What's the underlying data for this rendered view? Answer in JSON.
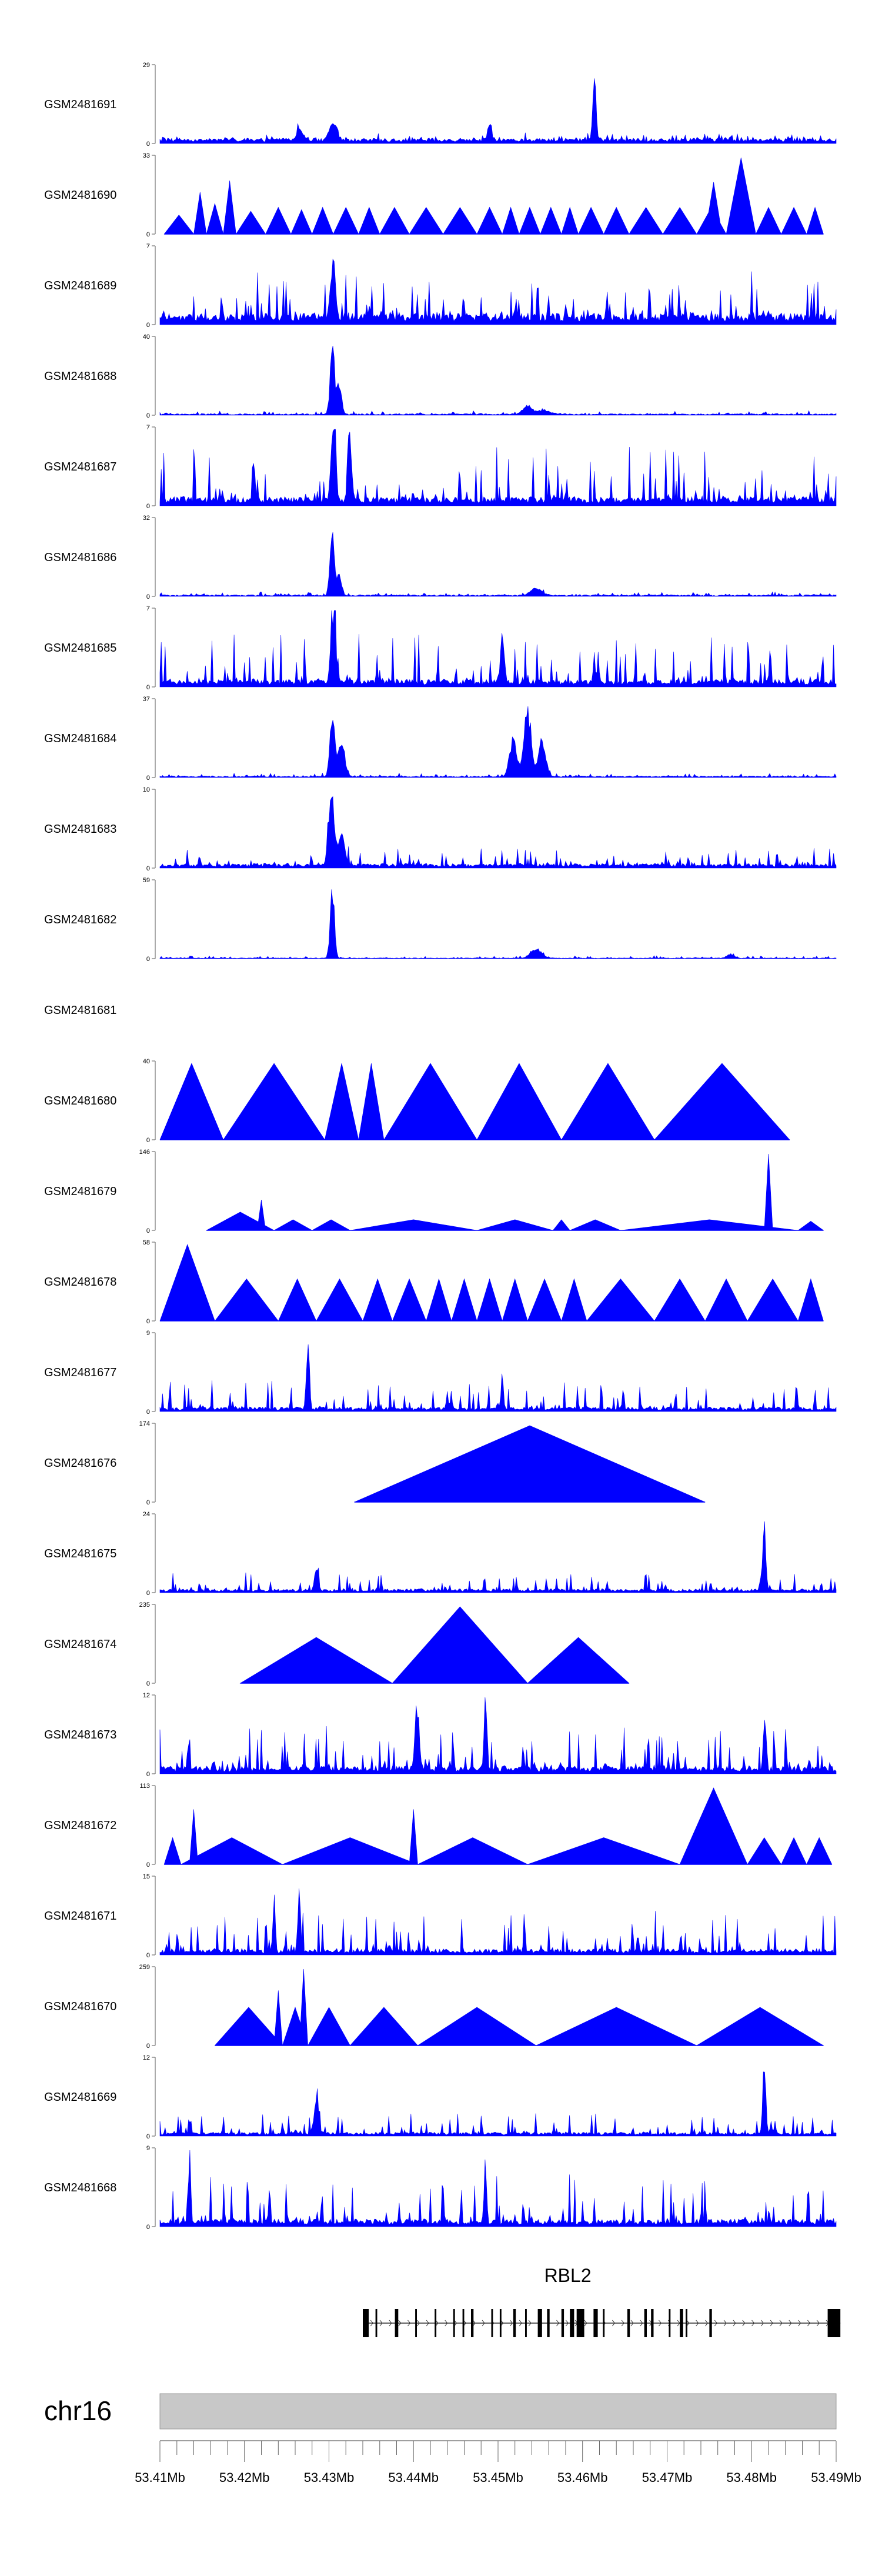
{
  "chart_data": {
    "type": "area",
    "title": "",
    "region": {
      "chrom": "chr16",
      "start_mb": 53.41,
      "end_mb": 53.49
    },
    "gene": {
      "name": "RBL2",
      "strand": "+",
      "start_mb": 53.434,
      "end_mb": 53.4905
    },
    "colors": {
      "signal": "#0000ff",
      "axis": "#555555",
      "ideogram": "#c8c8c8",
      "gene": "#000000"
    },
    "x_ticks": [
      "53.41Mb",
      "53.42Mb",
      "53.43Mb",
      "53.44Mb",
      "53.45Mb",
      "53.46Mb",
      "53.47Mb",
      "53.48Mb",
      "53.49Mb"
    ],
    "tracks": [
      {
        "name": "GSM2481691",
        "ymax": 29,
        "ymin_label": "0",
        "ymax_label": "29",
        "style": "spiky",
        "base": 0.07,
        "noise": 0.08,
        "span": [
          53.41,
          53.49
        ],
        "peaks": [
          [
            53.4614,
            1.0,
            0.00025
          ],
          [
            53.4305,
            0.28,
            0.0006
          ],
          [
            53.449,
            0.3,
            0.0003
          ],
          [
            53.4265,
            0.18,
            0.0005
          ]
        ]
      },
      {
        "name": "GSM2481690",
        "ymax": 33,
        "ymin_label": "0",
        "ymax_label": "33",
        "style": "triangles",
        "span": [
          53.4105,
          53.4885
        ],
        "tris": [
          [
            53.4105,
            53.414,
            0.25
          ],
          [
            53.414,
            53.4155,
            0.55
          ],
          [
            53.4155,
            53.4175,
            0.4
          ],
          [
            53.4175,
            53.419,
            0.7
          ],
          [
            53.419,
            53.4225,
            0.3
          ],
          [
            53.4225,
            53.4255,
            0.35
          ],
          [
            53.4255,
            53.428,
            0.32
          ],
          [
            53.428,
            53.4305,
            0.35
          ],
          [
            53.4305,
            53.4335,
            0.35
          ],
          [
            53.4335,
            53.436,
            0.35
          ],
          [
            53.436,
            53.4395,
            0.35
          ],
          [
            53.4395,
            53.4435,
            0.35
          ],
          [
            53.4435,
            53.4475,
            0.35
          ],
          [
            53.4475,
            53.4505,
            0.35
          ],
          [
            53.4505,
            53.4525,
            0.35
          ],
          [
            53.4525,
            53.455,
            0.35
          ],
          [
            53.455,
            53.4575,
            0.35
          ],
          [
            53.4575,
            53.4595,
            0.35
          ],
          [
            53.4595,
            53.4625,
            0.35
          ],
          [
            53.4625,
            53.4655,
            0.35
          ],
          [
            53.4655,
            53.4695,
            0.35
          ],
          [
            53.4695,
            53.4735,
            0.35
          ],
          [
            53.4735,
            53.477,
            0.35
          ],
          [
            53.4745,
            53.4765,
            0.68
          ],
          [
            53.477,
            53.4805,
            1.0
          ],
          [
            53.4805,
            53.4835,
            0.35
          ],
          [
            53.4835,
            53.4865,
            0.35
          ],
          [
            53.4865,
            53.4885,
            0.35
          ]
        ]
      },
      {
        "name": "GSM2481689",
        "ymax": 7,
        "ymin_label": "0",
        "ymax_label": "7",
        "style": "spiky",
        "base": 0.15,
        "noise": 0.55,
        "span": [
          53.41,
          53.49
        ],
        "peaks": [
          [
            53.4305,
            0.9,
            0.0004
          ]
        ]
      },
      {
        "name": "GSM2481688",
        "ymax": 40,
        "ymin_label": "0",
        "ymax_label": "40",
        "style": "spiky",
        "base": 0.02,
        "noise": 0.04,
        "span": [
          53.41,
          53.49
        ],
        "peaks": [
          [
            53.4304,
            1.0,
            0.00035
          ],
          [
            53.4312,
            0.45,
            0.0004
          ],
          [
            53.4535,
            0.12,
            0.0008
          ],
          [
            53.4555,
            0.06,
            0.001
          ]
        ]
      },
      {
        "name": "GSM2481687",
        "ymax": 7,
        "ymin_label": "0",
        "ymax_label": "7",
        "style": "spiky",
        "base": 0.12,
        "noise": 0.7,
        "span": [
          53.41,
          53.49
        ],
        "peaks": [
          [
            53.4305,
            1.0,
            0.0004
          ],
          [
            53.4325,
            0.9,
            0.0003
          ]
        ]
      },
      {
        "name": "GSM2481686",
        "ymax": 32,
        "ymin_label": "0",
        "ymax_label": "32",
        "style": "spiky",
        "base": 0.02,
        "noise": 0.04,
        "span": [
          53.41,
          53.49
        ],
        "peaks": [
          [
            53.4304,
            1.0,
            0.00035
          ],
          [
            53.4312,
            0.3,
            0.0004
          ],
          [
            53.4545,
            0.1,
            0.001
          ]
        ]
      },
      {
        "name": "GSM2481685",
        "ymax": 7,
        "ymin_label": "0",
        "ymax_label": "7",
        "style": "spiky",
        "base": 0.1,
        "noise": 0.6,
        "span": [
          53.41,
          53.49
        ],
        "peaks": [
          [
            53.4305,
            1.0,
            0.0004
          ],
          [
            53.4505,
            0.8,
            0.0003
          ]
        ]
      },
      {
        "name": "GSM2481684",
        "ymax": 37,
        "ymin_label": "0",
        "ymax_label": "37",
        "style": "spiky",
        "base": 0.02,
        "noise": 0.04,
        "span": [
          53.41,
          53.49
        ],
        "peaks": [
          [
            53.4304,
            0.95,
            0.0004
          ],
          [
            53.4315,
            0.55,
            0.0005
          ],
          [
            53.4518,
            0.55,
            0.0006
          ],
          [
            53.4535,
            0.95,
            0.0006
          ],
          [
            53.4552,
            0.55,
            0.0006
          ]
        ]
      },
      {
        "name": "GSM2481683",
        "ymax": 10,
        "ymin_label": "0",
        "ymax_label": "10",
        "style": "spiky",
        "base": 0.06,
        "noise": 0.22,
        "span": [
          53.41,
          53.49
        ],
        "peaks": [
          [
            53.4303,
            0.95,
            0.0005
          ],
          [
            53.4315,
            0.45,
            0.0005
          ]
        ]
      },
      {
        "name": "GSM2481682",
        "ymax": 59,
        "ymin_label": "0",
        "ymax_label": "59",
        "style": "spiky",
        "base": 0.01,
        "noise": 0.03,
        "span": [
          53.41,
          53.49
        ],
        "peaks": [
          [
            53.4304,
            1.0,
            0.00035
          ],
          [
            53.4545,
            0.14,
            0.0009
          ],
          [
            53.4775,
            0.06,
            0.0006
          ]
        ]
      },
      {
        "name": "GSM2481681",
        "ymax": 0,
        "style": "empty"
      },
      {
        "name": "GSM2481680",
        "ymax": 40,
        "ymin_label": "0",
        "ymax_label": "40",
        "style": "triangles",
        "span": [
          53.41,
          53.4845
        ],
        "tris": [
          [
            53.41,
            53.4175,
            1.0
          ],
          [
            53.4175,
            53.4295,
            1.0
          ],
          [
            53.4295,
            53.4335,
            1.0
          ],
          [
            53.4335,
            53.4365,
            1.0
          ],
          [
            53.4365,
            53.4475,
            1.0
          ],
          [
            53.4475,
            53.4575,
            1.0
          ],
          [
            53.4575,
            53.4685,
            1.0
          ],
          [
            53.4685,
            53.4845,
            1.0
          ]
        ]
      },
      {
        "name": "GSM2481679",
        "ymax": 146,
        "ymin_label": "0",
        "ymax_label": "146",
        "style": "triangles",
        "span": [
          53.4155,
          53.4885
        ],
        "tris": [
          [
            53.4155,
            53.4235,
            0.24
          ],
          [
            53.4215,
            53.4225,
            0.4
          ],
          [
            53.4235,
            53.428,
            0.14
          ],
          [
            53.428,
            53.4325,
            0.14
          ],
          [
            53.4325,
            53.4475,
            0.14
          ],
          [
            53.4475,
            53.4565,
            0.14
          ],
          [
            53.4565,
            53.4585,
            0.14
          ],
          [
            53.4585,
            53.4645,
            0.14
          ],
          [
            53.4645,
            53.4855,
            0.14
          ],
          [
            53.4815,
            53.4825,
            1.0
          ],
          [
            53.4855,
            53.4885,
            0.12
          ]
        ]
      },
      {
        "name": "GSM2481678",
        "ymax": 58,
        "ymin_label": "0",
        "ymax_label": "58",
        "style": "triangles",
        "span": [
          53.41,
          53.4885
        ],
        "tris": [
          [
            53.41,
            53.4165,
            1.0
          ],
          [
            53.4165,
            53.424,
            0.55
          ],
          [
            53.424,
            53.4285,
            0.55
          ],
          [
            53.4285,
            53.434,
            0.55
          ],
          [
            53.434,
            53.4375,
            0.55
          ],
          [
            53.4375,
            53.4415,
            0.55
          ],
          [
            53.4415,
            53.4445,
            0.55
          ],
          [
            53.4445,
            53.4475,
            0.55
          ],
          [
            53.4475,
            53.4505,
            0.55
          ],
          [
            53.4505,
            53.4535,
            0.55
          ],
          [
            53.4535,
            53.4575,
            0.55
          ],
          [
            53.4575,
            53.4605,
            0.55
          ],
          [
            53.4605,
            53.4685,
            0.55
          ],
          [
            53.4685,
            53.4745,
            0.55
          ],
          [
            53.4745,
            53.4795,
            0.55
          ],
          [
            53.4795,
            53.4855,
            0.55
          ],
          [
            53.4855,
            53.4885,
            0.55
          ]
        ]
      },
      {
        "name": "GSM2481677",
        "ymax": 9,
        "ymin_label": "0",
        "ymax_label": "9",
        "style": "spiky",
        "base": 0.06,
        "noise": 0.35,
        "span": [
          53.41,
          53.49
        ],
        "peaks": [
          [
            53.4275,
            1.0,
            0.00025
          ],
          [
            53.4505,
            0.5,
            0.0002
          ]
        ]
      },
      {
        "name": "GSM2481676",
        "ymax": 174,
        "ymin_label": "0",
        "ymax_label": "174",
        "style": "triangles",
        "span": [
          53.433,
          53.4745
        ],
        "tris": [
          [
            53.433,
            53.4745,
            1.0
          ]
        ]
      },
      {
        "name": "GSM2481675",
        "ymax": 24,
        "ymin_label": "0",
        "ymax_label": "24",
        "style": "spiky",
        "base": 0.05,
        "noise": 0.22,
        "span": [
          53.41,
          53.49
        ],
        "peaks": [
          [
            53.4815,
            1.0,
            0.00025
          ],
          [
            53.4285,
            0.35,
            0.0003
          ]
        ]
      },
      {
        "name": "GSM2481674",
        "ymax": 235,
        "ymin_label": "0",
        "ymax_label": "235",
        "style": "triangles",
        "span": [
          53.4195,
          53.4655
        ],
        "tris": [
          [
            53.4195,
            53.4375,
            0.6
          ],
          [
            53.4375,
            53.4535,
            1.0
          ],
          [
            53.4535,
            53.4655,
            0.6
          ]
        ]
      },
      {
        "name": "GSM2481673",
        "ymax": 12,
        "ymin_label": "0",
        "ymax_label": "12",
        "style": "spiky",
        "base": 0.1,
        "noise": 0.55,
        "span": [
          53.41,
          53.49
        ],
        "peaks": [
          [
            53.4405,
            0.8,
            0.0003
          ],
          [
            53.4485,
            1.0,
            0.0002
          ],
          [
            53.4815,
            0.7,
            0.0002
          ]
        ]
      },
      {
        "name": "GSM2481672",
        "ymax": 113,
        "ymin_label": "0",
        "ymax_label": "113",
        "style": "triangles",
        "span": [
          53.4105,
          53.4895
        ],
        "tris": [
          [
            53.4105,
            53.4125,
            0.35
          ],
          [
            53.4125,
            53.4245,
            0.35
          ],
          [
            53.4135,
            53.4145,
            0.72
          ],
          [
            53.4245,
            53.4405,
            0.35
          ],
          [
            53.4405,
            53.4535,
            0.35
          ],
          [
            53.4395,
            53.4405,
            0.72
          ],
          [
            53.4535,
            53.4715,
            0.35
          ],
          [
            53.4715,
            53.4795,
            1.0
          ],
          [
            53.4795,
            53.4835,
            0.35
          ],
          [
            53.4835,
            53.4865,
            0.35
          ],
          [
            53.4865,
            53.4895,
            0.35
          ]
        ]
      },
      {
        "name": "GSM2481671",
        "ymax": 15,
        "ymin_label": "0",
        "ymax_label": "15",
        "style": "spiky",
        "base": 0.08,
        "noise": 0.5,
        "span": [
          53.41,
          53.49
        ],
        "peaks": [
          [
            53.4265,
            1.0,
            0.0002
          ],
          [
            53.4235,
            0.75,
            0.0002
          ]
        ]
      },
      {
        "name": "GSM2481670",
        "ymax": 259,
        "ymin_label": "0",
        "ymax_label": "259",
        "style": "triangles",
        "span": [
          53.4165,
          53.4885
        ],
        "tris": [
          [
            53.4165,
            53.4245,
            0.5
          ],
          [
            53.4235,
            53.4245,
            0.72
          ],
          [
            53.4245,
            53.4275,
            0.5
          ],
          [
            53.4265,
            53.4275,
            1.0
          ],
          [
            53.4275,
            53.4325,
            0.5
          ],
          [
            53.4325,
            53.4405,
            0.5
          ],
          [
            53.4405,
            53.4545,
            0.5
          ],
          [
            53.4545,
            53.4735,
            0.5
          ],
          [
            53.4735,
            53.4885,
            0.5
          ]
        ]
      },
      {
        "name": "GSM2481669",
        "ymax": 12,
        "ymin_label": "0",
        "ymax_label": "12",
        "style": "spiky",
        "base": 0.05,
        "noise": 0.25,
        "span": [
          53.41,
          53.49
        ],
        "peaks": [
          [
            53.4815,
            1.0,
            0.00025
          ],
          [
            53.4285,
            0.42,
            0.0004
          ]
        ]
      },
      {
        "name": "GSM2481668",
        "ymax": 9,
        "ymin_label": "0",
        "ymax_label": "9",
        "style": "spiky",
        "base": 0.1,
        "noise": 0.6,
        "span": [
          53.41,
          53.49
        ],
        "peaks": [
          [
            53.4135,
            1.0,
            0.0002
          ],
          [
            53.4485,
            1.0,
            0.0002
          ]
        ]
      }
    ],
    "exons": [
      [
        53.434,
        53.4347
      ],
      [
        53.4355,
        53.4357
      ],
      [
        53.4378,
        53.4382
      ],
      [
        53.4402,
        53.4404
      ],
      [
        53.4425,
        53.4427
      ],
      [
        53.4447,
        53.4449
      ],
      [
        53.4458,
        53.446
      ],
      [
        53.4468,
        53.4471
      ],
      [
        53.4492,
        53.4494
      ],
      [
        53.4502,
        53.4504
      ],
      [
        53.4518,
        53.4521
      ],
      [
        53.4532,
        53.4534
      ],
      [
        53.4547,
        53.4552
      ],
      [
        53.4558,
        53.4561
      ],
      [
        53.4575,
        53.4578
      ],
      [
        53.4585,
        53.459
      ],
      [
        53.4593,
        53.4602
      ],
      [
        53.4613,
        53.4618
      ],
      [
        53.4624,
        53.4626
      ],
      [
        53.4653,
        53.4656
      ],
      [
        53.4673,
        53.4676
      ],
      [
        53.4681,
        53.4684
      ],
      [
        53.4702,
        53.4704
      ],
      [
        53.4715,
        53.4719
      ],
      [
        53.4722,
        53.4724
      ],
      [
        53.475,
        53.4753
      ],
      [
        53.489,
        53.4905
      ]
    ]
  }
}
